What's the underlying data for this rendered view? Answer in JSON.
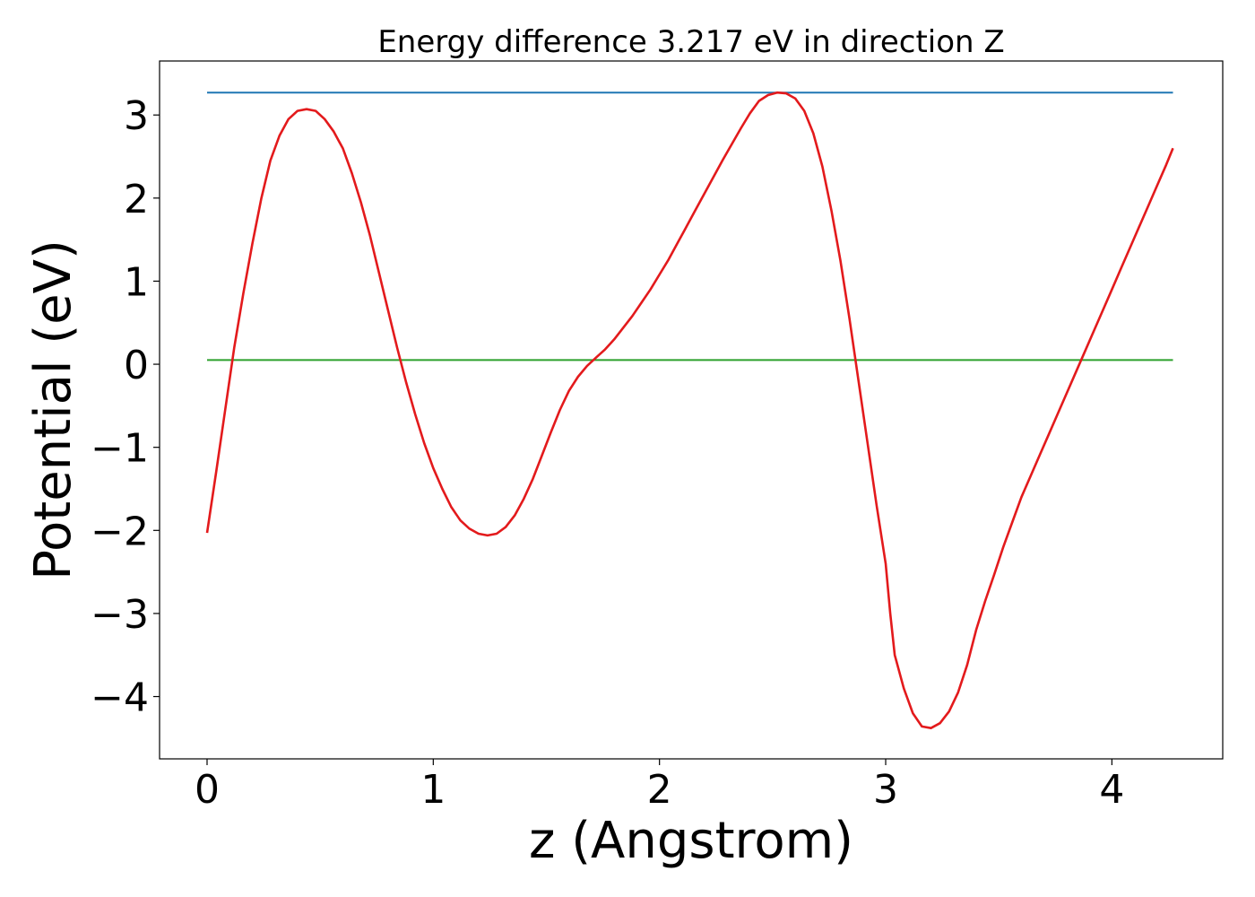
{
  "chart_data": {
    "type": "line",
    "title": "Energy difference 3.217 eV in direction Z",
    "xlabel": "z (Angstrom)",
    "ylabel": "Potential (eV)",
    "xlim": [
      -0.21,
      4.49
    ],
    "ylim": [
      -4.75,
      3.65
    ],
    "xticks": [
      0,
      1,
      2,
      3,
      4
    ],
    "xtick_labels": [
      "0",
      "1",
      "2",
      "3",
      "4"
    ],
    "yticks": [
      -4,
      -3,
      -2,
      -1,
      0,
      1,
      2,
      3
    ],
    "ytick_labels": [
      "−4",
      "−3",
      "−2",
      "−1",
      "0",
      "1",
      "2",
      "3"
    ],
    "grid": false,
    "series": [
      {
        "color": "#1f77b4",
        "x": [
          0,
          4.27
        ],
        "y": [
          3.27,
          3.27
        ]
      },
      {
        "color": "#2ca02c",
        "x": [
          0,
          4.27
        ],
        "y": [
          0.05,
          0.05
        ]
      },
      {
        "color": "#e31a1c",
        "x": [
          0,
          0.04,
          0.08,
          0.12,
          0.16,
          0.2,
          0.24,
          0.28,
          0.32,
          0.36,
          0.4,
          0.44,
          0.48,
          0.52,
          0.56,
          0.58,
          0.6,
          0.64,
          0.68,
          0.72,
          0.76,
          0.8,
          0.84,
          0.88,
          0.92,
          0.96,
          1.0,
          1.04,
          1.08,
          1.12,
          1.16,
          1.2,
          1.24,
          1.28,
          1.32,
          1.36,
          1.4,
          1.44,
          1.48,
          1.52,
          1.56,
          1.6,
          1.64,
          1.68,
          1.72,
          1.76,
          1.8,
          1.84,
          1.88,
          1.92,
          1.96,
          2.0,
          2.04,
          2.08,
          2.12,
          2.16,
          2.2,
          2.24,
          2.28,
          2.32,
          2.36,
          2.4,
          2.44,
          2.48,
          2.52,
          2.56,
          2.6,
          2.64,
          2.68,
          2.72,
          2.76,
          2.8,
          2.84,
          2.88,
          2.92,
          2.96,
          3.0,
          3.02,
          3.04,
          3.08,
          3.12,
          3.16,
          3.2,
          3.24,
          3.28,
          3.32,
          3.36,
          3.4,
          3.44,
          3.48,
          3.52,
          3.56,
          3.6,
          3.64,
          3.68,
          3.72,
          3.76,
          3.8,
          3.84,
          3.88,
          3.92,
          3.96,
          4.0,
          4.04,
          4.08,
          4.12,
          4.16,
          4.2,
          4.24,
          4.27
        ],
        "y": [
          -2.03,
          -1.3,
          -0.55,
          0.2,
          0.85,
          1.45,
          2.0,
          2.45,
          2.75,
          2.95,
          3.05,
          3.07,
          3.05,
          2.95,
          2.8,
          2.7,
          2.6,
          2.3,
          1.95,
          1.55,
          1.1,
          0.65,
          0.2,
          -0.22,
          -0.6,
          -0.95,
          -1.25,
          -1.5,
          -1.72,
          -1.88,
          -1.98,
          -2.04,
          -2.06,
          -2.04,
          -1.96,
          -1.82,
          -1.62,
          -1.38,
          -1.1,
          -0.82,
          -0.55,
          -0.32,
          -0.15,
          -0.02,
          0.08,
          0.18,
          0.3,
          0.44,
          0.58,
          0.74,
          0.9,
          1.08,
          1.26,
          1.46,
          1.66,
          1.86,
          2.06,
          2.26,
          2.46,
          2.65,
          2.84,
          3.02,
          3.17,
          3.24,
          3.27,
          3.26,
          3.2,
          3.05,
          2.78,
          2.38,
          1.85,
          1.25,
          0.55,
          -0.2,
          -0.95,
          -1.7,
          -2.4,
          -3.0,
          -3.5,
          -3.9,
          -4.2,
          -4.36,
          -4.38,
          -4.32,
          -4.18,
          -3.95,
          -3.62,
          -3.2,
          -2.85,
          -2.53,
          -2.2,
          -1.9,
          -1.6,
          -1.35,
          -1.1,
          -0.85,
          -0.6,
          -0.35,
          -0.1,
          0.15,
          0.4,
          0.65,
          0.9,
          1.15,
          1.4,
          1.65,
          1.9,
          2.15,
          2.4,
          2.6
        ]
      }
    ]
  }
}
